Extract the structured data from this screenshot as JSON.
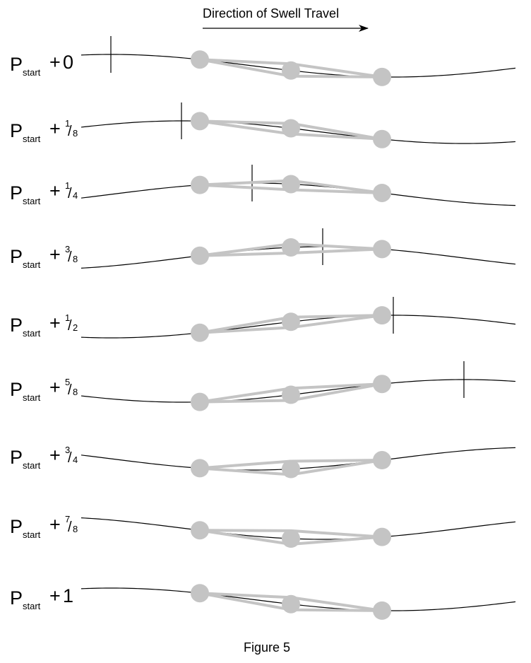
{
  "direction_label": "Direction of Swell Travel",
  "caption": "Figure 5",
  "label_prefix": "P",
  "label_subscript": "start",
  "label_operator": "+",
  "colors": {
    "line": "#000000",
    "device": "#c4c4c4",
    "background": "#ffffff"
  },
  "phases": [
    {
      "whole": "0"
    },
    {
      "numerator": "1",
      "denominator": "8"
    },
    {
      "numerator": "1",
      "denominator": "4"
    },
    {
      "numerator": "3",
      "denominator": "8"
    },
    {
      "numerator": "1",
      "denominator": "2"
    },
    {
      "numerator": "5",
      "denominator": "8"
    },
    {
      "numerator": "3",
      "denominator": "4"
    },
    {
      "numerator": "7",
      "denominator": "8"
    },
    {
      "whole": "1"
    }
  ]
}
